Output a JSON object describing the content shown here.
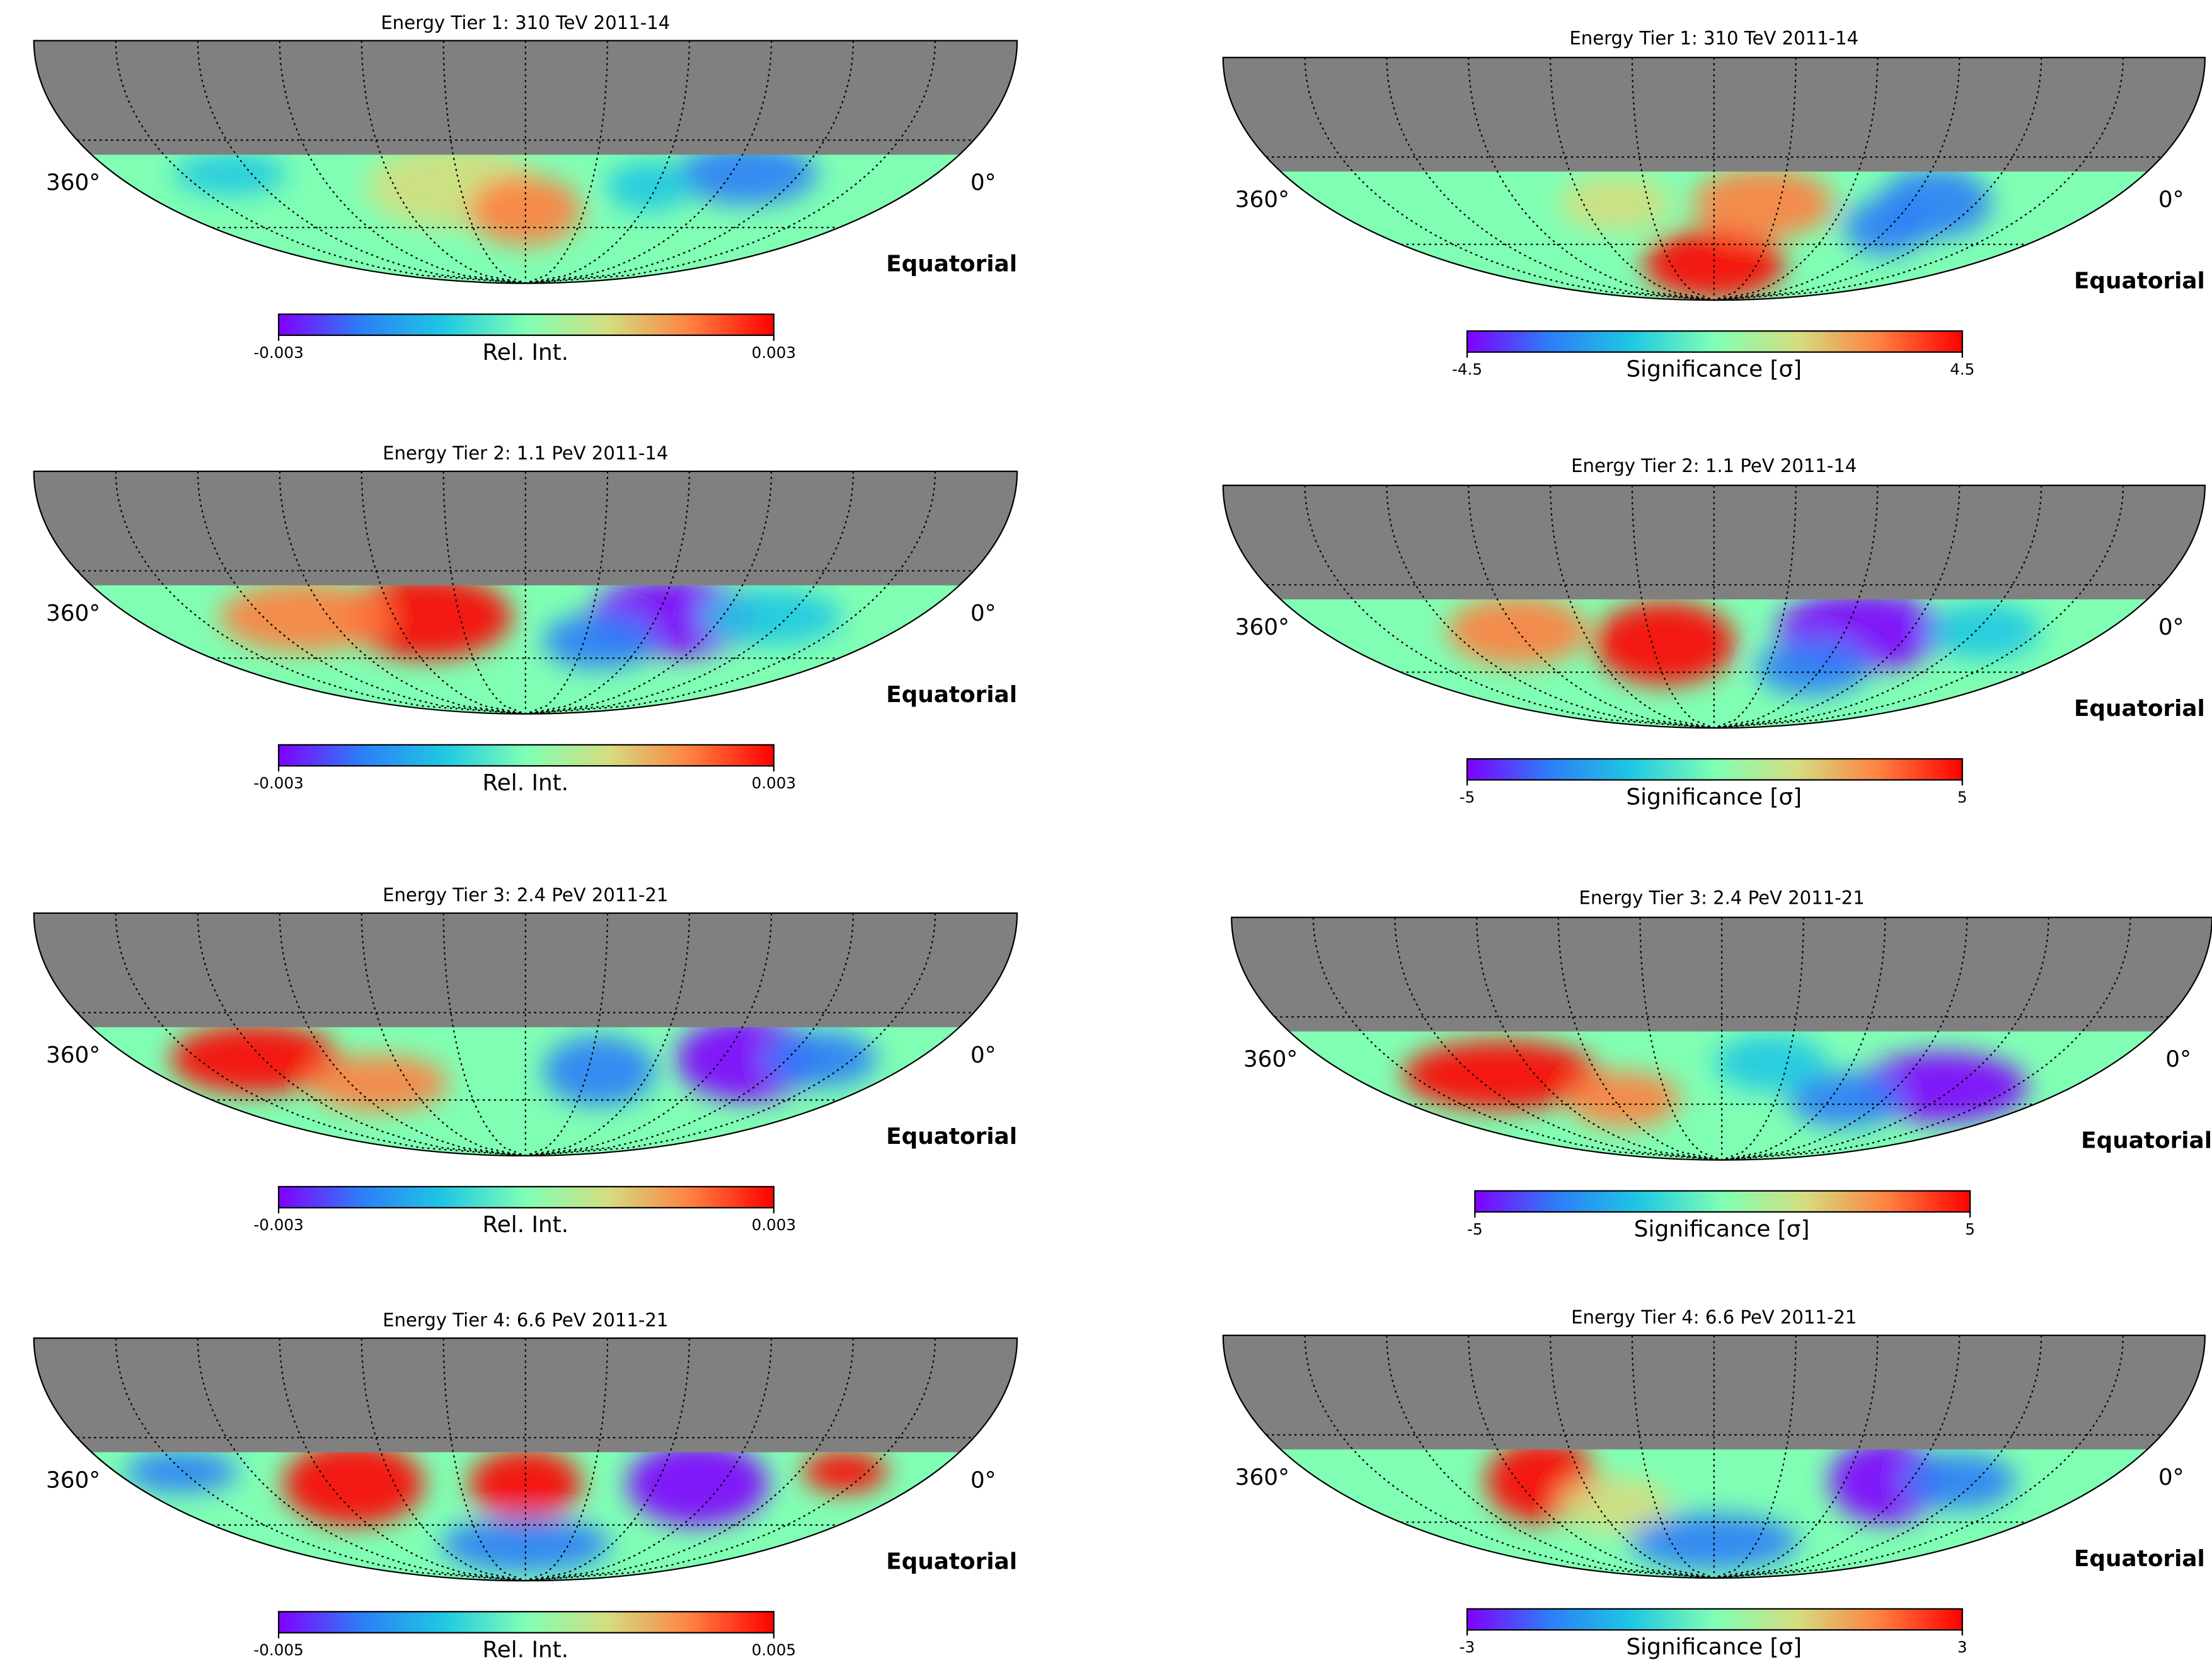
{
  "chart_data": [
    {
      "type": "skymap",
      "title": "Energy Tier 1: 310 TeV 2011-14",
      "colorbar_label": "Rel. Int.",
      "clim": [
        -0.003,
        0.003
      ],
      "cticks": [
        -0.003,
        0.003
      ],
      "xticks": [
        {
          "value": 360,
          "label": "360°"
        },
        {
          "value": 0,
          "label": "0°"
        }
      ],
      "frame": "Equatorial",
      "colormap": "rainbow"
    },
    {
      "type": "skymap",
      "title": "Energy Tier 1: 310 TeV 2011-14",
      "colorbar_label": "Significance [σ]",
      "clim": [
        -4.5,
        4.5
      ],
      "cticks": [
        -4.5,
        4.5
      ],
      "xticks": [
        {
          "value": 360,
          "label": "360°"
        },
        {
          "value": 0,
          "label": "0°"
        }
      ],
      "frame": "Equatorial",
      "colormap": "rainbow"
    },
    {
      "type": "skymap",
      "title": "Energy Tier 2: 1.1 PeV 2011-14",
      "colorbar_label": "Rel. Int.",
      "clim": [
        -0.003,
        0.003
      ],
      "cticks": [
        -0.003,
        0.003
      ],
      "xticks": [
        {
          "value": 360,
          "label": "360°"
        },
        {
          "value": 0,
          "label": "0°"
        }
      ],
      "frame": "Equatorial",
      "colormap": "rainbow"
    },
    {
      "type": "skymap",
      "title": "Energy Tier 2: 1.1 PeV 2011-14",
      "colorbar_label": "Significance [σ]",
      "clim": [
        -5,
        5
      ],
      "cticks": [
        -5,
        5
      ],
      "xticks": [
        {
          "value": 360,
          "label": "360°"
        },
        {
          "value": 0,
          "label": "0°"
        }
      ],
      "frame": "Equatorial",
      "colormap": "rainbow"
    },
    {
      "type": "skymap",
      "title": "Energy Tier 3: 2.4 PeV 2011-21",
      "colorbar_label": "Rel. Int.",
      "clim": [
        -0.003,
        0.003
      ],
      "cticks": [
        -0.003,
        0.003
      ],
      "xticks": [
        {
          "value": 360,
          "label": "360°"
        },
        {
          "value": 0,
          "label": "0°"
        }
      ],
      "frame": "Equatorial",
      "colormap": "rainbow"
    },
    {
      "type": "skymap",
      "title": "Energy Tier 3: 2.4 PeV 2011-21",
      "colorbar_label": "Significance [σ]",
      "clim": [
        -5,
        5
      ],
      "cticks": [
        -5,
        5
      ],
      "xticks": [
        {
          "value": 360,
          "label": "360°"
        },
        {
          "value": 0,
          "label": "0°"
        }
      ],
      "frame": "Equatorial",
      "colormap": "rainbow"
    },
    {
      "type": "skymap",
      "title": "Energy Tier 4: 6.6 PeV 2011-21",
      "colorbar_label": "Rel. Int.",
      "clim": [
        -0.005,
        0.005
      ],
      "cticks": [
        -0.005,
        0.005
      ],
      "xticks": [
        {
          "value": 360,
          "label": "360°"
        },
        {
          "value": 0,
          "label": "0°"
        }
      ],
      "frame": "Equatorial",
      "colormap": "rainbow"
    },
    {
      "type": "skymap",
      "title": "Energy Tier 4: 6.6 PeV 2011-21",
      "colorbar_label": "Significance [σ]",
      "clim": [
        -3,
        3
      ],
      "cticks": [
        -3,
        3
      ],
      "xticks": [
        {
          "value": 360,
          "label": "360°"
        },
        {
          "value": 0,
          "label": "0°"
        }
      ],
      "frame": "Equatorial",
      "colormap": "rainbow"
    }
  ]
}
